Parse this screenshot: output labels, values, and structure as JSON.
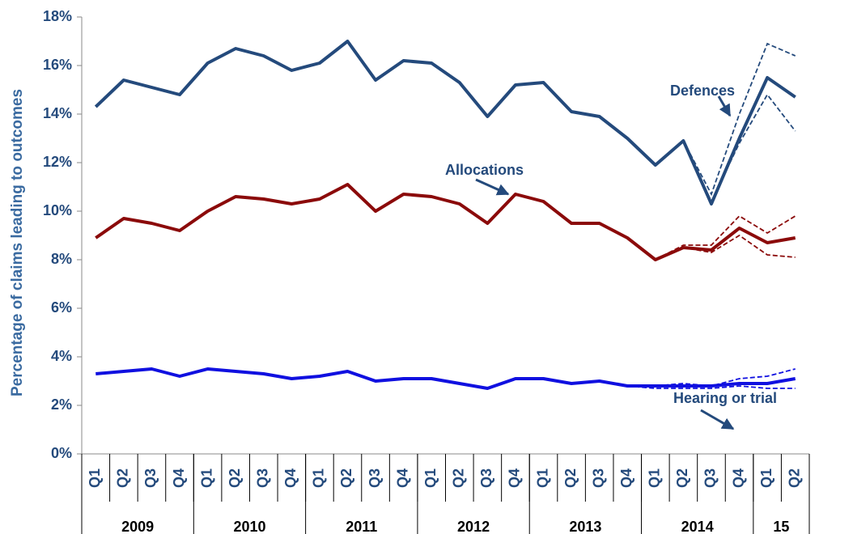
{
  "chart_data": {
    "type": "line",
    "y_axis_label": "Percentage of claims leading to outcomes",
    "categories": [
      "Q1",
      "Q2",
      "Q3",
      "Q4",
      "Q1",
      "Q2",
      "Q3",
      "Q4",
      "Q1",
      "Q2",
      "Q3",
      "Q4",
      "Q1",
      "Q2",
      "Q3",
      "Q4",
      "Q1",
      "Q2",
      "Q3",
      "Q4",
      "Q1",
      "Q2",
      "Q3",
      "Q4",
      "Q1",
      "Q2"
    ],
    "year_groups": [
      {
        "label": "2009",
        "size": 4
      },
      {
        "label": "2010",
        "size": 4
      },
      {
        "label": "2011",
        "size": 4
      },
      {
        "label": "2012",
        "size": 4
      },
      {
        "label": "2013",
        "size": 4
      },
      {
        "label": "2014",
        "size": 4
      },
      {
        "label": "15",
        "size": 2
      }
    ],
    "ylim": [
      0,
      18
    ],
    "yticks": [
      {
        "value": 0,
        "label": "0%"
      },
      {
        "value": 2,
        "label": "2%"
      },
      {
        "value": 4,
        "label": "4%"
      },
      {
        "value": 6,
        "label": "6%"
      },
      {
        "value": 8,
        "label": "8%"
      },
      {
        "value": 10,
        "label": "10%"
      },
      {
        "value": 12,
        "label": "12%"
      },
      {
        "value": 14,
        "label": "14%"
      },
      {
        "value": 16,
        "label": "16%"
      },
      {
        "value": 18,
        "label": "18%"
      }
    ],
    "series": [
      {
        "name": "Defences",
        "color": "#244a7c",
        "values": [
          14.3,
          15.4,
          15.1,
          14.8,
          16.1,
          16.7,
          16.4,
          15.8,
          16.1,
          17.0,
          15.4,
          16.2,
          16.1,
          15.3,
          13.9,
          15.2,
          15.3,
          14.1,
          13.9,
          13.0,
          11.9,
          12.9,
          10.3,
          13.0,
          15.5,
          14.7
        ],
        "upper": [
          null,
          null,
          null,
          null,
          null,
          null,
          null,
          null,
          null,
          null,
          null,
          null,
          null,
          null,
          null,
          null,
          null,
          null,
          null,
          null,
          null,
          12.9,
          10.7,
          14.0,
          16.9,
          16.4
        ],
        "lower": [
          null,
          null,
          null,
          null,
          null,
          null,
          null,
          null,
          null,
          null,
          null,
          null,
          null,
          null,
          null,
          null,
          null,
          null,
          null,
          null,
          null,
          12.9,
          10.4,
          12.8,
          14.8,
          13.3
        ]
      },
      {
        "name": "Allocations",
        "color": "#8b0a0a",
        "values": [
          8.9,
          9.7,
          9.5,
          9.2,
          10.0,
          10.6,
          10.5,
          10.3,
          10.5,
          11.1,
          10.0,
          10.7,
          10.6,
          10.3,
          9.5,
          10.7,
          10.4,
          9.5,
          9.5,
          8.9,
          8.0,
          8.5,
          8.4,
          9.3,
          8.7,
          8.9
        ],
        "upper": [
          null,
          null,
          null,
          null,
          null,
          null,
          null,
          null,
          null,
          null,
          null,
          null,
          null,
          null,
          null,
          null,
          null,
          null,
          null,
          null,
          8.0,
          8.6,
          8.6,
          9.8,
          9.1,
          9.8
        ],
        "lower": [
          null,
          null,
          null,
          null,
          null,
          null,
          null,
          null,
          null,
          null,
          null,
          null,
          null,
          null,
          null,
          null,
          null,
          null,
          null,
          null,
          8.0,
          8.5,
          8.3,
          9.0,
          8.2,
          8.1
        ]
      },
      {
        "name": "Hearing or trial",
        "color": "#1010e0",
        "values": [
          3.3,
          3.4,
          3.5,
          3.2,
          3.5,
          3.4,
          3.3,
          3.1,
          3.2,
          3.4,
          3.0,
          3.1,
          3.1,
          2.9,
          2.7,
          3.1,
          3.1,
          2.9,
          3.0,
          2.8,
          2.8,
          2.8,
          2.8,
          2.9,
          2.9,
          3.1
        ],
        "upper": [
          null,
          null,
          null,
          null,
          null,
          null,
          null,
          null,
          null,
          null,
          null,
          null,
          null,
          null,
          null,
          null,
          null,
          null,
          null,
          2.8,
          2.8,
          2.9,
          2.8,
          3.1,
          3.2,
          3.5
        ],
        "lower": [
          null,
          null,
          null,
          null,
          null,
          null,
          null,
          null,
          null,
          null,
          null,
          null,
          null,
          null,
          null,
          null,
          null,
          null,
          null,
          2.8,
          2.7,
          2.7,
          2.7,
          2.8,
          2.7,
          2.7
        ]
      }
    ]
  }
}
